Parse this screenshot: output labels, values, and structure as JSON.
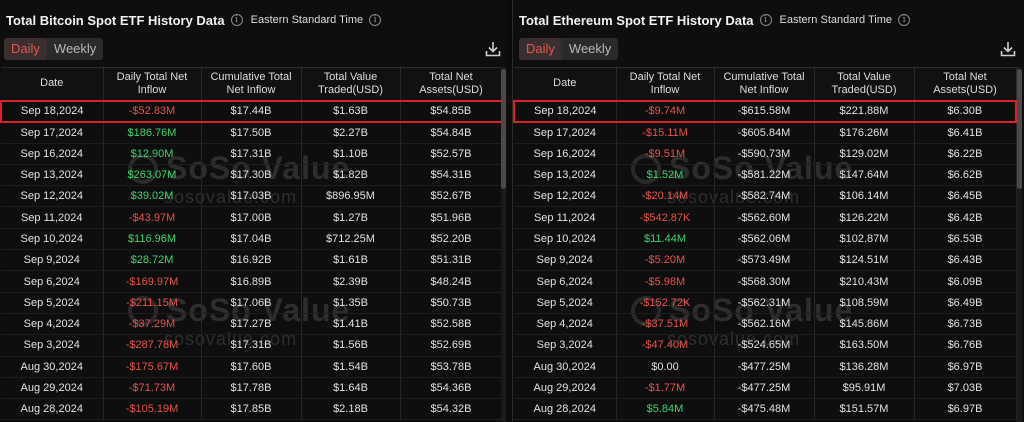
{
  "left": {
    "title": "Total Bitcoin Spot ETF History Data",
    "timezone": "Eastern Standard Time",
    "tabs": [
      "Daily",
      "Weekly"
    ],
    "active_tab": "Daily",
    "columns": [
      "Date",
      "Daily Total Net Inflow",
      "Cumulative Total Net Inflow",
      "Total Value Traded(USD)",
      "Total Net Assets(USD)"
    ],
    "rows": [
      {
        "date": "Sep 18,2024",
        "inflow": "-$52.83M",
        "sign": "neg",
        "cum": "$17.44B",
        "traded": "$1.63B",
        "assets": "$54.85B"
      },
      {
        "date": "Sep 17,2024",
        "inflow": "$186.76M",
        "sign": "pos",
        "cum": "$17.50B",
        "traded": "$2.27B",
        "assets": "$54.84B"
      },
      {
        "date": "Sep 16,2024",
        "inflow": "$12.90M",
        "sign": "pos",
        "cum": "$17.31B",
        "traded": "$1.10B",
        "assets": "$52.57B"
      },
      {
        "date": "Sep 13,2024",
        "inflow": "$263.07M",
        "sign": "pos",
        "cum": "$17.30B",
        "traded": "$1.82B",
        "assets": "$54.31B"
      },
      {
        "date": "Sep 12,2024",
        "inflow": "$39.02M",
        "sign": "pos",
        "cum": "$17.03B",
        "traded": "$896.95M",
        "assets": "$52.67B"
      },
      {
        "date": "Sep 11,2024",
        "inflow": "-$43.97M",
        "sign": "neg",
        "cum": "$17.00B",
        "traded": "$1.27B",
        "assets": "$51.96B"
      },
      {
        "date": "Sep 10,2024",
        "inflow": "$116.96M",
        "sign": "pos",
        "cum": "$17.04B",
        "traded": "$712.25M",
        "assets": "$52.20B"
      },
      {
        "date": "Sep 9,2024",
        "inflow": "$28.72M",
        "sign": "pos",
        "cum": "$16.92B",
        "traded": "$1.61B",
        "assets": "$51.31B"
      },
      {
        "date": "Sep 6,2024",
        "inflow": "-$169.97M",
        "sign": "neg",
        "cum": "$16.89B",
        "traded": "$2.39B",
        "assets": "$48.24B"
      },
      {
        "date": "Sep 5,2024",
        "inflow": "-$211.15M",
        "sign": "neg",
        "cum": "$17.06B",
        "traded": "$1.35B",
        "assets": "$50.73B"
      },
      {
        "date": "Sep 4,2024",
        "inflow": "-$37.29M",
        "sign": "neg",
        "cum": "$17.27B",
        "traded": "$1.41B",
        "assets": "$52.58B"
      },
      {
        "date": "Sep 3,2024",
        "inflow": "-$287.78M",
        "sign": "neg",
        "cum": "$17.31B",
        "traded": "$1.56B",
        "assets": "$52.69B"
      },
      {
        "date": "Aug 30,2024",
        "inflow": "-$175.67M",
        "sign": "neg",
        "cum": "$17.60B",
        "traded": "$1.54B",
        "assets": "$53.78B"
      },
      {
        "date": "Aug 29,2024",
        "inflow": "-$71.73M",
        "sign": "neg",
        "cum": "$17.78B",
        "traded": "$1.64B",
        "assets": "$54.36B"
      },
      {
        "date": "Aug 28,2024",
        "inflow": "-$105.19M",
        "sign": "neg",
        "cum": "$17.85B",
        "traded": "$2.18B",
        "assets": "$54.32B"
      }
    ]
  },
  "right": {
    "title": "Total Ethereum Spot ETF History Data",
    "timezone": "Eastern Standard Time",
    "tabs": [
      "Daily",
      "Weekly"
    ],
    "active_tab": "Daily",
    "columns": [
      "Date",
      "Daily Total Net Inflow",
      "Cumulative Total Net Inflow",
      "Total Value Traded(USD)",
      "Total Net Assets(USD)"
    ],
    "rows": [
      {
        "date": "Sep 18,2024",
        "inflow": "-$9.74M",
        "sign": "neg",
        "cum": "-$615.58M",
        "traded": "$221.88M",
        "assets": "$6.30B"
      },
      {
        "date": "Sep 17,2024",
        "inflow": "-$15.11M",
        "sign": "neg",
        "cum": "-$605.84M",
        "traded": "$176.26M",
        "assets": "$6.41B"
      },
      {
        "date": "Sep 16,2024",
        "inflow": "-$9.51M",
        "sign": "neg",
        "cum": "-$590.73M",
        "traded": "$129.02M",
        "assets": "$6.22B"
      },
      {
        "date": "Sep 13,2024",
        "inflow": "$1.52M",
        "sign": "pos",
        "cum": "-$581.22M",
        "traded": "$147.64M",
        "assets": "$6.62B"
      },
      {
        "date": "Sep 12,2024",
        "inflow": "-$20.14M",
        "sign": "neg",
        "cum": "-$582.74M",
        "traded": "$106.14M",
        "assets": "$6.45B"
      },
      {
        "date": "Sep 11,2024",
        "inflow": "-$542.87K",
        "sign": "neg",
        "cum": "-$562.60M",
        "traded": "$126.22M",
        "assets": "$6.42B"
      },
      {
        "date": "Sep 10,2024",
        "inflow": "$11.44M",
        "sign": "pos",
        "cum": "-$562.06M",
        "traded": "$102.87M",
        "assets": "$6.53B"
      },
      {
        "date": "Sep 9,2024",
        "inflow": "-$5.20M",
        "sign": "neg",
        "cum": "-$573.49M",
        "traded": "$124.51M",
        "assets": "$6.43B"
      },
      {
        "date": "Sep 6,2024",
        "inflow": "-$5.98M",
        "sign": "neg",
        "cum": "-$568.30M",
        "traded": "$210.43M",
        "assets": "$6.09B"
      },
      {
        "date": "Sep 5,2024",
        "inflow": "-$152.72K",
        "sign": "neg",
        "cum": "-$562.31M",
        "traded": "$108.59M",
        "assets": "$6.49B"
      },
      {
        "date": "Sep 4,2024",
        "inflow": "-$37.51M",
        "sign": "neg",
        "cum": "-$562.16M",
        "traded": "$145.86M",
        "assets": "$6.73B"
      },
      {
        "date": "Sep 3,2024",
        "inflow": "-$47.40M",
        "sign": "neg",
        "cum": "-$524.65M",
        "traded": "$163.50M",
        "assets": "$6.76B"
      },
      {
        "date": "Aug 30,2024",
        "inflow": "$0.00",
        "sign": "zero",
        "cum": "-$477.25M",
        "traded": "$136.28M",
        "assets": "$6.97B"
      },
      {
        "date": "Aug 29,2024",
        "inflow": "-$1.77M",
        "sign": "neg",
        "cum": "-$477.25M",
        "traded": "$95.91M",
        "assets": "$7.03B"
      },
      {
        "date": "Aug 28,2024",
        "inflow": "$5.84M",
        "sign": "pos",
        "cum": "-$475.48M",
        "traded": "$151.57M",
        "assets": "$6.97B"
      }
    ]
  },
  "watermark": {
    "brand": "SoSo Value",
    "domain": "sosovalue.com"
  },
  "icons": {
    "info": "info-icon",
    "download": "download-icon"
  },
  "colors": {
    "negative": "#e5534b",
    "positive": "#3dd46a",
    "active_tab": "#e05a4e",
    "highlight_border": "#d9232a"
  }
}
